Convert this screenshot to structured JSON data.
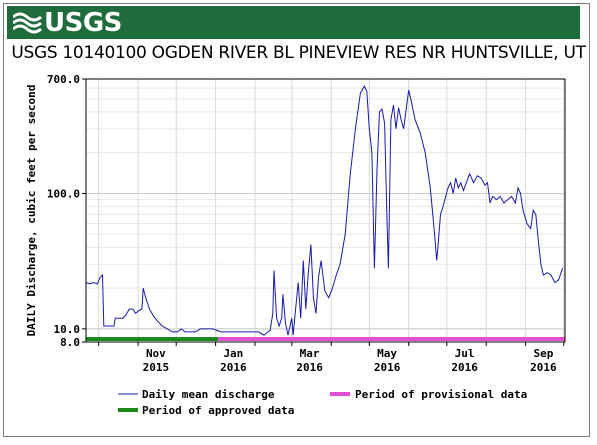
{
  "header": {
    "logo_text": "USGS",
    "banner_color": "#1e6b3c",
    "title": "USGS 10140100 OGDEN RIVER BL PINEVIEW RES NR HUNTSVILLE, UT"
  },
  "chart_data": {
    "type": "line",
    "scale": "log",
    "ylabel": "DAILY Discharge, cubic feet per second",
    "ylim": [
      8.0,
      700.0
    ],
    "yticks": [
      "700.0",
      "100.0",
      "10.0",
      "8.0"
    ],
    "ytick_values": [
      700,
      100,
      10,
      8
    ],
    "xlim": [
      "2015-09-21",
      "2016-10-02"
    ],
    "xticks": [
      {
        "date": "2015-11-01",
        "line1": "Nov",
        "line2": "2015"
      },
      {
        "date": "2016-01-01",
        "line1": "Jan",
        "line2": "2016"
      },
      {
        "date": "2016-03-01",
        "line1": "Mar",
        "line2": "2016"
      },
      {
        "date": "2016-05-01",
        "line1": "May",
        "line2": "2016"
      },
      {
        "date": "2016-07-01",
        "line1": "Jul",
        "line2": "2016"
      },
      {
        "date": "2016-09-01",
        "line1": "Sep",
        "line2": "2016"
      }
    ],
    "series": [
      {
        "name": "Daily mean discharge",
        "color": "#1a1aa8",
        "points": [
          [
            "2015-09-21",
            22
          ],
          [
            "2015-09-24",
            21.5
          ],
          [
            "2015-09-27",
            22
          ],
          [
            "2015-09-30",
            21.5
          ],
          [
            "2015-10-02",
            24
          ],
          [
            "2015-10-04",
            25
          ],
          [
            "2015-10-05",
            10.5
          ],
          [
            "2015-10-10",
            10.5
          ],
          [
            "2015-10-13",
            10.5
          ],
          [
            "2015-10-14",
            12
          ],
          [
            "2015-10-17",
            12
          ],
          [
            "2015-10-20",
            12
          ],
          [
            "2015-10-22",
            12.5
          ],
          [
            "2015-10-25",
            14
          ],
          [
            "2015-10-28",
            14
          ],
          [
            "2015-10-30",
            13
          ],
          [
            "2015-11-01",
            13.5
          ],
          [
            "2015-11-04",
            14
          ],
          [
            "2015-11-05",
            20
          ],
          [
            "2015-11-07",
            17
          ],
          [
            "2015-11-10",
            14
          ],
          [
            "2015-11-13",
            12.5
          ],
          [
            "2015-11-16",
            11.5
          ],
          [
            "2015-11-20",
            10.5
          ],
          [
            "2015-11-24",
            10
          ],
          [
            "2015-11-28",
            9.5
          ],
          [
            "2015-12-02",
            9.5
          ],
          [
            "2015-12-05",
            10
          ],
          [
            "2015-12-08",
            9.5
          ],
          [
            "2015-12-12",
            9.5
          ],
          [
            "2015-12-16",
            9.5
          ],
          [
            "2015-12-20",
            10
          ],
          [
            "2015-12-25",
            10
          ],
          [
            "2015-12-30",
            10
          ],
          [
            "2016-01-05",
            9.5
          ],
          [
            "2016-01-10",
            9.5
          ],
          [
            "2016-01-15",
            9.5
          ],
          [
            "2016-01-20",
            9.5
          ],
          [
            "2016-01-25",
            9.5
          ],
          [
            "2016-01-31",
            9.5
          ],
          [
            "2016-02-04",
            9.5
          ],
          [
            "2016-02-08",
            9
          ],
          [
            "2016-02-13",
            9.8
          ],
          [
            "2016-02-15",
            13
          ],
          [
            "2016-02-16",
            27
          ],
          [
            "2016-02-18",
            12
          ],
          [
            "2016-02-20",
            10.5
          ],
          [
            "2016-02-22",
            12
          ],
          [
            "2016-02-23",
            18
          ],
          [
            "2016-02-25",
            11
          ],
          [
            "2016-02-27",
            9
          ],
          [
            "2016-03-01",
            12
          ],
          [
            "2016-03-02",
            9
          ],
          [
            "2016-03-04",
            14
          ],
          [
            "2016-03-06",
            22
          ],
          [
            "2016-03-08",
            12
          ],
          [
            "2016-03-10",
            32
          ],
          [
            "2016-03-12",
            14
          ],
          [
            "2016-03-14",
            26
          ],
          [
            "2016-03-16",
            42
          ],
          [
            "2016-03-18",
            17
          ],
          [
            "2016-03-20",
            13
          ],
          [
            "2016-03-22",
            24
          ],
          [
            "2016-03-24",
            32
          ],
          [
            "2016-03-27",
            19
          ],
          [
            "2016-03-30",
            17
          ],
          [
            "2016-04-02",
            20
          ],
          [
            "2016-04-05",
            25
          ],
          [
            "2016-04-08",
            30
          ],
          [
            "2016-04-12",
            50
          ],
          [
            "2016-04-16",
            140
          ],
          [
            "2016-04-20",
            300
          ],
          [
            "2016-04-24",
            550
          ],
          [
            "2016-04-27",
            620
          ],
          [
            "2016-04-29",
            570
          ],
          [
            "2016-05-01",
            300
          ],
          [
            "2016-05-03",
            200
          ],
          [
            "2016-05-05",
            28
          ],
          [
            "2016-05-07",
            150
          ],
          [
            "2016-05-09",
            400
          ],
          [
            "2016-05-11",
            420
          ],
          [
            "2016-05-13",
            330
          ],
          [
            "2016-05-15",
            60
          ],
          [
            "2016-05-16",
            28
          ],
          [
            "2016-05-18",
            350
          ],
          [
            "2016-05-20",
            450
          ],
          [
            "2016-05-22",
            300
          ],
          [
            "2016-05-24",
            430
          ],
          [
            "2016-05-26",
            350
          ],
          [
            "2016-05-28",
            300
          ],
          [
            "2016-05-30",
            420
          ],
          [
            "2016-06-01",
            580
          ],
          [
            "2016-06-03",
            480
          ],
          [
            "2016-06-06",
            350
          ],
          [
            "2016-06-10",
            280
          ],
          [
            "2016-06-14",
            200
          ],
          [
            "2016-06-18",
            110
          ],
          [
            "2016-06-21",
            55
          ],
          [
            "2016-06-23",
            32
          ],
          [
            "2016-06-24",
            40
          ],
          [
            "2016-06-26",
            70
          ],
          [
            "2016-06-28",
            80
          ],
          [
            "2016-07-02",
            110
          ],
          [
            "2016-07-04",
            120
          ],
          [
            "2016-07-06",
            100
          ],
          [
            "2016-07-08",
            130
          ],
          [
            "2016-07-10",
            110
          ],
          [
            "2016-07-12",
            120
          ],
          [
            "2016-07-14",
            105
          ],
          [
            "2016-07-17",
            125
          ],
          [
            "2016-07-19",
            140
          ],
          [
            "2016-07-22",
            120
          ],
          [
            "2016-07-25",
            135
          ],
          [
            "2016-07-28",
            130
          ],
          [
            "2016-07-31",
            115
          ],
          [
            "2016-08-02",
            120
          ],
          [
            "2016-08-04",
            85
          ],
          [
            "2016-08-06",
            95
          ],
          [
            "2016-08-09",
            90
          ],
          [
            "2016-08-12",
            95
          ],
          [
            "2016-08-15",
            85
          ],
          [
            "2016-08-18",
            90
          ],
          [
            "2016-08-21",
            95
          ],
          [
            "2016-08-24",
            85
          ],
          [
            "2016-08-26",
            110
          ],
          [
            "2016-08-28",
            100
          ],
          [
            "2016-08-30",
            75
          ],
          [
            "2016-09-02",
            60
          ],
          [
            "2016-09-05",
            55
          ],
          [
            "2016-09-07",
            75
          ],
          [
            "2016-09-09",
            70
          ],
          [
            "2016-09-11",
            45
          ],
          [
            "2016-09-13",
            30
          ],
          [
            "2016-09-15",
            25
          ],
          [
            "2016-09-18",
            26
          ],
          [
            "2016-09-21",
            25
          ],
          [
            "2016-09-24",
            22
          ],
          [
            "2016-09-27",
            23
          ],
          [
            "2016-09-30",
            28
          ]
        ]
      }
    ],
    "periods": [
      {
        "name": "Period of approved data",
        "color": "#1a8a1a",
        "start": "2015-09-21",
        "end": "2016-01-03"
      },
      {
        "name": "Period of provisional data",
        "color": "#e050d0",
        "start": "2016-01-03",
        "end": "2016-10-02"
      }
    ],
    "legend": {
      "placement": "bottom",
      "items": [
        {
          "label": "Daily mean discharge",
          "color": "#1a1aa8"
        },
        {
          "label": "Period of provisional data",
          "color": "#e050d0"
        },
        {
          "label": "Period of approved data",
          "color": "#1a8a1a"
        }
      ]
    }
  }
}
